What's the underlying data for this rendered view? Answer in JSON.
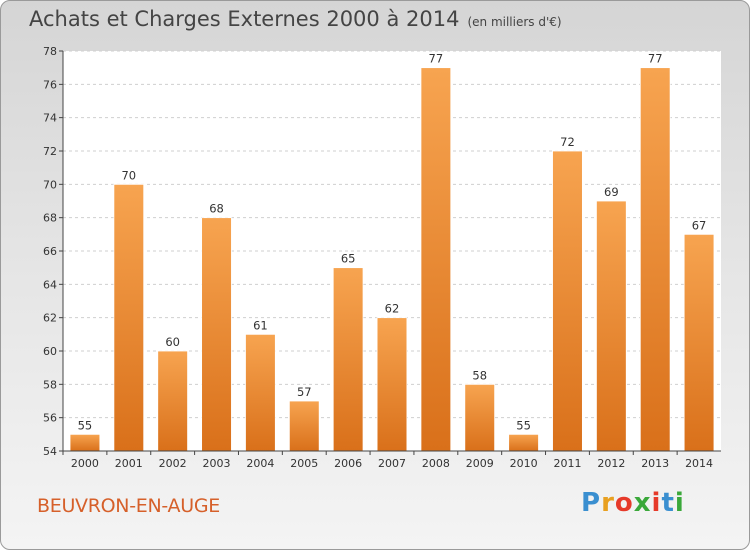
{
  "title": "Achats et Charges Externes 2000 à 2014",
  "subtitle": "(en milliers d'€)",
  "location": "BEUVRON-EN-AUGE",
  "logo": {
    "letters": [
      "P",
      "r",
      "o",
      "x",
      "i",
      "t",
      "i"
    ],
    "colors": [
      "#3a8fd0",
      "#e8a020",
      "#e63a2a",
      "#3aa83a",
      "#e63a2a",
      "#3a8fd0",
      "#3aa83a"
    ]
  },
  "colors": {
    "bar_top": "#f7a450",
    "bar_bottom": "#d9701a",
    "grid": "#cfcfcf",
    "axis": "#444444"
  },
  "chart_data": {
    "type": "bar",
    "title": "Achats et Charges Externes 2000 à 2014",
    "subtitle": "(en milliers d'€)",
    "xlabel": "",
    "ylabel": "",
    "ylim": [
      54,
      78
    ],
    "yticks": [
      54,
      56,
      58,
      60,
      62,
      64,
      66,
      68,
      70,
      72,
      74,
      76,
      78
    ],
    "grid": true,
    "categories": [
      "2000",
      "2001",
      "2002",
      "2003",
      "2004",
      "2005",
      "2006",
      "2007",
      "2008",
      "2009",
      "2010",
      "2011",
      "2012",
      "2013",
      "2014"
    ],
    "values": [
      55,
      70,
      60,
      68,
      61,
      57,
      65,
      62,
      77,
      58,
      55,
      72,
      69,
      77,
      67
    ]
  }
}
